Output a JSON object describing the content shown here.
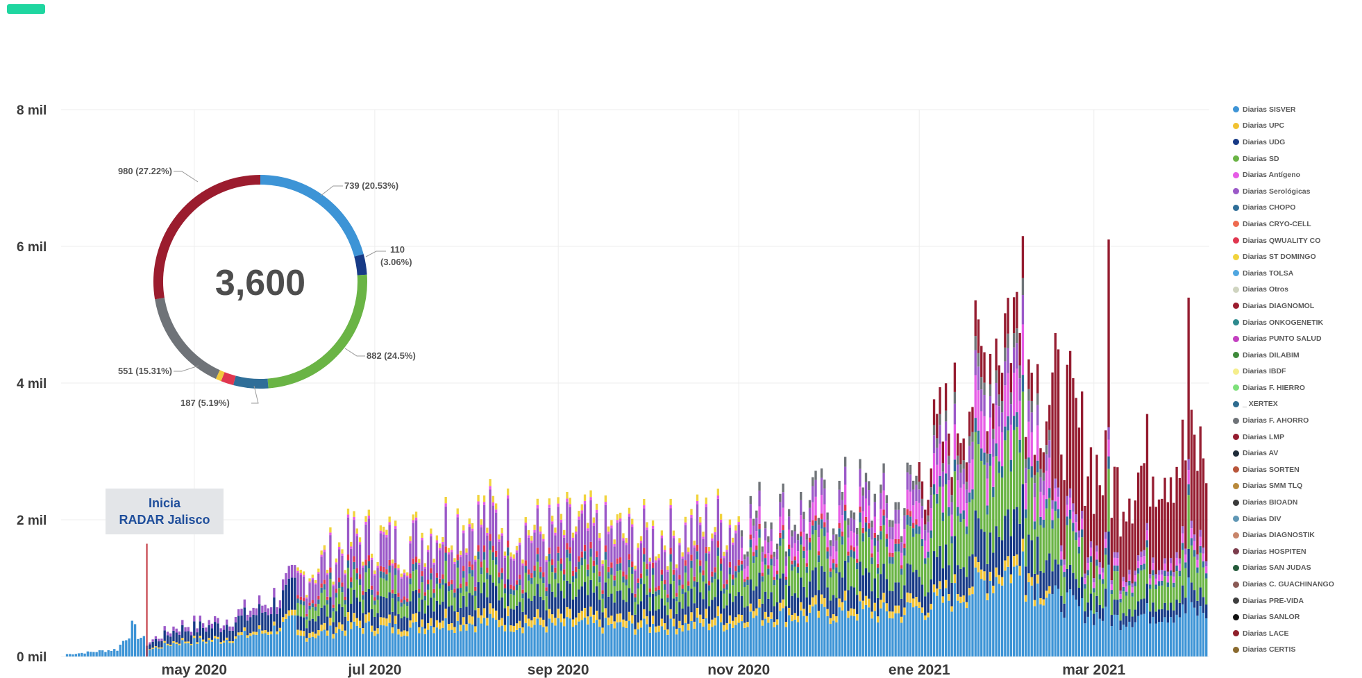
{
  "header": {
    "tag_color": "#1fd6a0"
  },
  "chart_data": {
    "type": "bar",
    "stacked": true,
    "x_type": "date",
    "y_ticks": [
      "0 mil",
      "2 mil",
      "4 mil",
      "6 mil",
      "8 mil"
    ],
    "ylim": [
      0,
      8000
    ],
    "x_ticks": [
      "may 2020",
      "jul 2020",
      "sep 2020",
      "nov 2020",
      "ene 2021",
      "mar 2021"
    ],
    "xlim": [
      "2020-03-17",
      "2021-04-09"
    ],
    "grid": true,
    "legend_position": "right",
    "annotation": {
      "date": "2020-04-15",
      "line1": "Inicia",
      "line2": "RADAR Jalisco",
      "line_color": "#c0313a"
    },
    "daily_totals_approx": [
      {
        "date": "2020-03-20",
        "value": 40
      },
      {
        "date": "2020-04-05",
        "value": 120
      },
      {
        "date": "2020-04-10",
        "value": 480
      },
      {
        "date": "2020-04-15",
        "value": 220
      },
      {
        "date": "2020-04-25",
        "value": 520
      },
      {
        "date": "2020-05-10",
        "value": 600
      },
      {
        "date": "2020-05-25",
        "value": 900
      },
      {
        "date": "2020-06-10",
        "value": 1500
      },
      {
        "date": "2020-06-25",
        "value": 2050
      },
      {
        "date": "2020-07-10",
        "value": 1900
      },
      {
        "date": "2020-07-25",
        "value": 2300
      },
      {
        "date": "2020-08-10",
        "value": 2400
      },
      {
        "date": "2020-08-25",
        "value": 2150
      },
      {
        "date": "2020-09-10",
        "value": 2200
      },
      {
        "date": "2020-09-25",
        "value": 2050
      },
      {
        "date": "2020-10-10",
        "value": 2100
      },
      {
        "date": "2020-10-25",
        "value": 2300
      },
      {
        "date": "2020-11-10",
        "value": 2400
      },
      {
        "date": "2020-11-25",
        "value": 2450
      },
      {
        "date": "2020-12-10",
        "value": 2700
      },
      {
        "date": "2020-12-25",
        "value": 2500
      },
      {
        "date": "2021-01-05",
        "value": 3400
      },
      {
        "date": "2021-01-15",
        "value": 4200
      },
      {
        "date": "2021-01-25",
        "value": 5200
      },
      {
        "date": "2021-02-01",
        "value": 5900
      },
      {
        "date": "2021-02-10",
        "value": 4600
      },
      {
        "date": "2021-02-20",
        "value": 4100
      },
      {
        "date": "2021-03-01",
        "value": 3200
      },
      {
        "date": "2021-03-10",
        "value": 2800
      },
      {
        "date": "2021-03-20",
        "value": 3300
      },
      {
        "date": "2021-04-05",
        "value": 3400
      }
    ],
    "daily_peaks": [
      {
        "date": "2021-02-05",
        "value": 6150
      },
      {
        "date": "2021-03-06",
        "value": 6100
      },
      {
        "date": "2021-04-02",
        "value": 5250
      }
    ],
    "donut": {
      "total": "3,600",
      "slices": [
        {
          "value": 739,
          "label": "739 (20.53%)",
          "color": "#3d94d6"
        },
        {
          "value": 110,
          "label_line1": "110",
          "label_line2": "(3.06%)",
          "color": "#173a86"
        },
        {
          "value": 882,
          "label": "882 (24.5%)",
          "color": "#6ab445"
        },
        {
          "value": 187,
          "label": "187 (5.19%)",
          "color": "#2f6e98"
        },
        {
          "value": 68,
          "color": "#e0364f"
        },
        {
          "value": 30,
          "color": "#f1c93c"
        },
        {
          "value": 551,
          "label": "551 (15.31%)",
          "color": "#6f7378"
        },
        {
          "value": 980,
          "label": "980 (27.22%)",
          "color": "#9b1c2e"
        }
      ]
    },
    "legend": [
      {
        "name": "Diarias SISVER",
        "color": "#3d94d6"
      },
      {
        "name": "Diarias UPC",
        "color": "#f1c232"
      },
      {
        "name": "Diarias UDG",
        "color": "#173a86"
      },
      {
        "name": "Diarias SD",
        "color": "#6ab445"
      },
      {
        "name": "Diarias Antígeno",
        "color": "#e65ce6"
      },
      {
        "name": "Diarias Serológicas",
        "color": "#9b59c8"
      },
      {
        "name": "Diarias CHOPO",
        "color": "#2f6e98"
      },
      {
        "name": "Diarias CRYO-CELL",
        "color": "#ee6a4f"
      },
      {
        "name": "Diarias QWUALITY CO",
        "color": "#e0364f"
      },
      {
        "name": "Diarias ST DOMINGO",
        "color": "#f1d33c"
      },
      {
        "name": "Diarias TOLSA",
        "color": "#4fa6e0"
      },
      {
        "name": "Diarias Otros",
        "color": "#cfd4c0"
      },
      {
        "name": "Diarias DIAGNOMOL",
        "color": "#9b1c2e"
      },
      {
        "name": "Diarias ONKOGENETIK",
        "color": "#2d8a8e"
      },
      {
        "name": "Diarias PUNTO SALUD",
        "color": "#c33fc0"
      },
      {
        "name": "Diarias DILABIM",
        "color": "#3e8a3a"
      },
      {
        "name": "Diarias IBDF",
        "color": "#f5ee8c"
      },
      {
        "name": "Diarias F. HIERRO",
        "color": "#7de07a"
      },
      {
        "name": "_ XERTEX",
        "color": "#2e6b8f"
      },
      {
        "name": "Diarias F. AHORRO",
        "color": "#6f7378"
      },
      {
        "name": "Diarias LMP",
        "color": "#951c30"
      },
      {
        "name": "Diarias AV",
        "color": "#1e2b38"
      },
      {
        "name": "Diarias SORTEN",
        "color": "#b8553a"
      },
      {
        "name": "Diarias SMM TLQ",
        "color": "#b8893a"
      },
      {
        "name": "Diarias BIOADN",
        "color": "#3a3a3a"
      },
      {
        "name": "Diarias DIV",
        "color": "#5f97b5"
      },
      {
        "name": "Diarias DIAGNOSTIK",
        "color": "#c8856a"
      },
      {
        "name": "Diarias HOSPITEN",
        "color": "#7b3c4c"
      },
      {
        "name": "Diarias SAN JUDAS",
        "color": "#245a3a"
      },
      {
        "name": "Diarias C. GUACHINANGO",
        "color": "#8a5a55"
      },
      {
        "name": "Diarias PRE-VIDA",
        "color": "#3f3f3f"
      },
      {
        "name": "Diarias SANLOR",
        "color": "#111111"
      },
      {
        "name": "Diarias LACE",
        "color": "#8f1f2a"
      },
      {
        "name": "Diarias CERTIS",
        "color": "#8a6a2e"
      }
    ]
  }
}
